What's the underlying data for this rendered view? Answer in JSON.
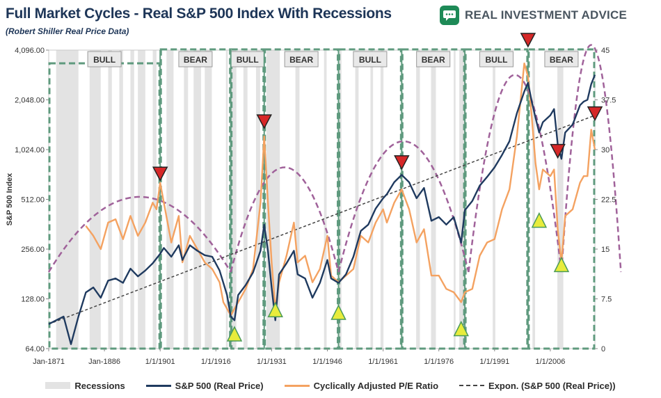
{
  "header": {
    "title": "Full Market Cycles - Real S&P 500 Index With Recessions",
    "subtitle": "(Robert Shiller Real Price Data)",
    "brand": "REAL INVESTMENT ADVICE"
  },
  "colors": {
    "sp500": "#1f3a5f",
    "cape": "#f4a261",
    "trend": "#444444",
    "recession": "#e3e3e3",
    "cycle_box": "#5f9a7e",
    "arc": "#a0629a",
    "up_triangle": "#e8ec3c",
    "down_triangle": "#d62828",
    "brand": "#1e8a57"
  },
  "legend": {
    "recessions": "Recessions",
    "sp500": "S&P 500 (Real Price)",
    "cape": "Cyclically Adjusted P/E Ratio",
    "trend": "Expon. (S&P 500 (Real Price))"
  },
  "chart_data": {
    "type": "line",
    "title": "Full Market Cycles - Real S&P 500 Index With Recessions",
    "ylabel": "S&P 500 Index",
    "x_range": [
      1871,
      2018
    ],
    "y_left_log2_range": [
      64,
      4096
    ],
    "y_left_ticks": [
      "64.00",
      "128.00",
      "256.00",
      "512.00",
      "1,024.00",
      "2,048.00",
      "4,096.00"
    ],
    "y_right_range": [
      0,
      45
    ],
    "y_right_ticks": [
      "0",
      "7.5",
      "15",
      "22.5",
      "30",
      "37.5",
      "45"
    ],
    "x_ticks": [
      {
        "year": 1871,
        "label": "Jan-1871"
      },
      {
        "year": 1886,
        "label": "Jan-1886"
      },
      {
        "year": 1901,
        "label": "1/1/1901"
      },
      {
        "year": 1916,
        "label": "1/1/1916"
      },
      {
        "year": 1931,
        "label": "1/1/1931"
      },
      {
        "year": 1946,
        "label": "1/1/1946"
      },
      {
        "year": 1961,
        "label": "1/1/1961"
      },
      {
        "year": 1976,
        "label": "1/1/1976"
      },
      {
        "year": 1991,
        "label": "1/1/1991"
      },
      {
        "year": 2006,
        "label": "1/1/2006"
      }
    ],
    "recessions": [
      [
        1873,
        1879
      ],
      [
        1882,
        1885
      ],
      [
        1887,
        1888
      ],
      [
        1890,
        1891
      ],
      [
        1893,
        1894
      ],
      [
        1895,
        1897
      ],
      [
        1899,
        1900
      ],
      [
        1902.7,
        1904.6
      ],
      [
        1907.4,
        1908.5
      ],
      [
        1910,
        1912
      ],
      [
        1913,
        1914.9
      ],
      [
        1918.7,
        1919.2
      ],
      [
        1920,
        1921.5
      ],
      [
        1923.4,
        1924.5
      ],
      [
        1926.8,
        1927.9
      ],
      [
        1929.6,
        1933.2
      ],
      [
        1937.4,
        1938.5
      ],
      [
        1945.1,
        1945.8
      ],
      [
        1948.9,
        1949.8
      ],
      [
        1953.5,
        1954.4
      ],
      [
        1957.6,
        1958.3
      ],
      [
        1960.3,
        1961.1
      ],
      [
        1969.9,
        1970.9
      ],
      [
        1973.9,
        1975.2
      ],
      [
        1980,
        1980.5
      ],
      [
        1981.5,
        1982.9
      ],
      [
        1990.5,
        1991.2
      ],
      [
        2001.2,
        2001.9
      ],
      [
        2007.9,
        2009.5
      ]
    ],
    "cycles": [
      {
        "label": "BULL",
        "start": 1871,
        "end": 1901
      },
      {
        "label": "BEAR",
        "start": 1901,
        "end": 1920
      },
      {
        "label": "BULL",
        "start": 1920,
        "end": 1929
      },
      {
        "label": "BEAR",
        "start": 1929,
        "end": 1949
      },
      {
        "label": "BULL",
        "start": 1949,
        "end": 1966
      },
      {
        "label": "BEAR",
        "start": 1966,
        "end": 1983
      },
      {
        "label": "BULL",
        "start": 1983,
        "end": 2000
      },
      {
        "label": "BEAR",
        "start": 2000,
        "end": 2018
      }
    ],
    "peaks": [
      {
        "year": 1901,
        "value": 700
      },
      {
        "year": 1929,
        "value": 1450
      },
      {
        "year": 1966,
        "value": 820
      },
      {
        "year": 2000,
        "value": 4600
      },
      {
        "year": 2008,
        "value": 960
      },
      {
        "year": 2018,
        "value": 1620
      }
    ],
    "troughs": [
      {
        "year": 1921,
        "value": 80
      },
      {
        "year": 1932,
        "value": 112
      },
      {
        "year": 1949,
        "value": 108
      },
      {
        "year": 1982,
        "value": 86
      },
      {
        "year": 2003,
        "value": 390
      },
      {
        "year": 2009,
        "value": 210
      }
    ],
    "trendline": {
      "start": [
        1871,
        90
      ],
      "end": [
        2018,
        1650
      ]
    },
    "arcs": [
      {
        "start": 1871,
        "end": 1920,
        "peak": 530
      },
      {
        "start": 1920,
        "end": 1949,
        "peak": 800
      },
      {
        "start": 1949,
        "end": 1984,
        "peak": 1150
      },
      {
        "start": 1984,
        "end": 2009,
        "peak": 2900
      },
      {
        "start": 2009,
        "end": 2025,
        "peak": 4400
      }
    ],
    "series": [
      {
        "name": "S&P 500 (Real Price)",
        "axis": "left",
        "points": [
          [
            1871,
            90
          ],
          [
            1873,
            95
          ],
          [
            1875,
            100
          ],
          [
            1877,
            68
          ],
          [
            1879,
            100
          ],
          [
            1881,
            140
          ],
          [
            1883,
            150
          ],
          [
            1885,
            130
          ],
          [
            1887,
            165
          ],
          [
            1889,
            170
          ],
          [
            1891,
            160
          ],
          [
            1893,
            195
          ],
          [
            1895,
            175
          ],
          [
            1897,
            190
          ],
          [
            1899,
            210
          ],
          [
            1901,
            240
          ],
          [
            1902,
            260
          ],
          [
            1904,
            230
          ],
          [
            1906,
            270
          ],
          [
            1907,
            220
          ],
          [
            1909,
            270
          ],
          [
            1911,
            250
          ],
          [
            1913,
            235
          ],
          [
            1915,
            230
          ],
          [
            1917,
            190
          ],
          [
            1919,
            135
          ],
          [
            1920,
            100
          ],
          [
            1921,
            95
          ],
          [
            1922,
            135
          ],
          [
            1924,
            155
          ],
          [
            1926,
            185
          ],
          [
            1928,
            250
          ],
          [
            1929,
            360
          ],
          [
            1930,
            250
          ],
          [
            1931,
            150
          ],
          [
            1932,
            95
          ],
          [
            1933,
            180
          ],
          [
            1935,
            210
          ],
          [
            1937,
            250
          ],
          [
            1938,
            180
          ],
          [
            1940,
            170
          ],
          [
            1942,
            130
          ],
          [
            1944,
            160
          ],
          [
            1946,
            220
          ],
          [
            1947,
            170
          ],
          [
            1949,
            160
          ],
          [
            1951,
            180
          ],
          [
            1953,
            230
          ],
          [
            1955,
            330
          ],
          [
            1957,
            360
          ],
          [
            1959,
            450
          ],
          [
            1961,
            520
          ],
          [
            1962,
            550
          ],
          [
            1964,
            650
          ],
          [
            1966,
            720
          ],
          [
            1968,
            650
          ],
          [
            1970,
            520
          ],
          [
            1972,
            600
          ],
          [
            1974,
            380
          ],
          [
            1976,
            400
          ],
          [
            1978,
            360
          ],
          [
            1980,
            400
          ],
          [
            1982,
            280
          ],
          [
            1983,
            440
          ],
          [
            1985,
            500
          ],
          [
            1987,
            620
          ],
          [
            1989,
            700
          ],
          [
            1991,
            800
          ],
          [
            1993,
            950
          ],
          [
            1995,
            1150
          ],
          [
            1997,
            1700
          ],
          [
            1999,
            2300
          ],
          [
            2000,
            2600
          ],
          [
            2001,
            2000
          ],
          [
            2002,
            1600
          ],
          [
            2003,
            1300
          ],
          [
            2004,
            1500
          ],
          [
            2006,
            1650
          ],
          [
            2007,
            1800
          ],
          [
            2008,
            1100
          ],
          [
            2009,
            900
          ],
          [
            2010,
            1300
          ],
          [
            2012,
            1450
          ],
          [
            2014,
            1900
          ],
          [
            2015,
            2000
          ],
          [
            2016,
            2050
          ],
          [
            2017,
            2550
          ],
          [
            2018,
            2900
          ]
        ]
      },
      {
        "name": "Cyclically Adjusted P/E Ratio",
        "axis": "right",
        "points": [
          [
            1881,
            18.5
          ],
          [
            1883,
            17
          ],
          [
            1885,
            15
          ],
          [
            1887,
            19
          ],
          [
            1889,
            19.5
          ],
          [
            1891,
            16.5
          ],
          [
            1893,
            20
          ],
          [
            1895,
            17
          ],
          [
            1897,
            19
          ],
          [
            1899,
            22
          ],
          [
            1900,
            21
          ],
          [
            1901,
            25
          ],
          [
            1902,
            22
          ],
          [
            1904,
            16
          ],
          [
            1906,
            20
          ],
          [
            1907,
            13
          ],
          [
            1909,
            17
          ],
          [
            1911,
            15
          ],
          [
            1913,
            13
          ],
          [
            1915,
            12
          ],
          [
            1917,
            10
          ],
          [
            1918,
            7
          ],
          [
            1920,
            5
          ],
          [
            1921,
            6
          ],
          [
            1922,
            7
          ],
          [
            1924,
            9
          ],
          [
            1926,
            12
          ],
          [
            1928,
            22
          ],
          [
            1929,
            32
          ],
          [
            1930,
            22
          ],
          [
            1931,
            13
          ],
          [
            1932,
            6
          ],
          [
            1933,
            10
          ],
          [
            1935,
            14
          ],
          [
            1937,
            19
          ],
          [
            1938,
            13
          ],
          [
            1940,
            14
          ],
          [
            1942,
            10
          ],
          [
            1944,
            12
          ],
          [
            1946,
            17
          ],
          [
            1947,
            11
          ],
          [
            1949,
            10
          ],
          [
            1951,
            11
          ],
          [
            1953,
            12
          ],
          [
            1955,
            17
          ],
          [
            1957,
            16
          ],
          [
            1959,
            19
          ],
          [
            1961,
            21
          ],
          [
            1962,
            19
          ],
          [
            1964,
            22
          ],
          [
            1966,
            24
          ],
          [
            1968,
            21
          ],
          [
            1970,
            16
          ],
          [
            1972,
            18
          ],
          [
            1974,
            11
          ],
          [
            1976,
            11
          ],
          [
            1978,
            9
          ],
          [
            1980,
            8.5
          ],
          [
            1982,
            7
          ],
          [
            1983,
            8.5
          ],
          [
            1985,
            9
          ],
          [
            1987,
            14
          ],
          [
            1989,
            16
          ],
          [
            1991,
            16.5
          ],
          [
            1993,
            21
          ],
          [
            1995,
            24
          ],
          [
            1997,
            32
          ],
          [
            1999,
            43
          ],
          [
            2000,
            41
          ],
          [
            2001,
            35
          ],
          [
            2002,
            28
          ],
          [
            2003,
            24
          ],
          [
            2004,
            27
          ],
          [
            2006,
            26
          ],
          [
            2007,
            27
          ],
          [
            2008,
            18
          ],
          [
            2009,
            13
          ],
          [
            2010,
            20
          ],
          [
            2012,
            21
          ],
          [
            2014,
            25
          ],
          [
            2015,
            26
          ],
          [
            2016,
            26
          ],
          [
            2017,
            33
          ],
          [
            2018,
            30
          ]
        ]
      }
    ]
  }
}
